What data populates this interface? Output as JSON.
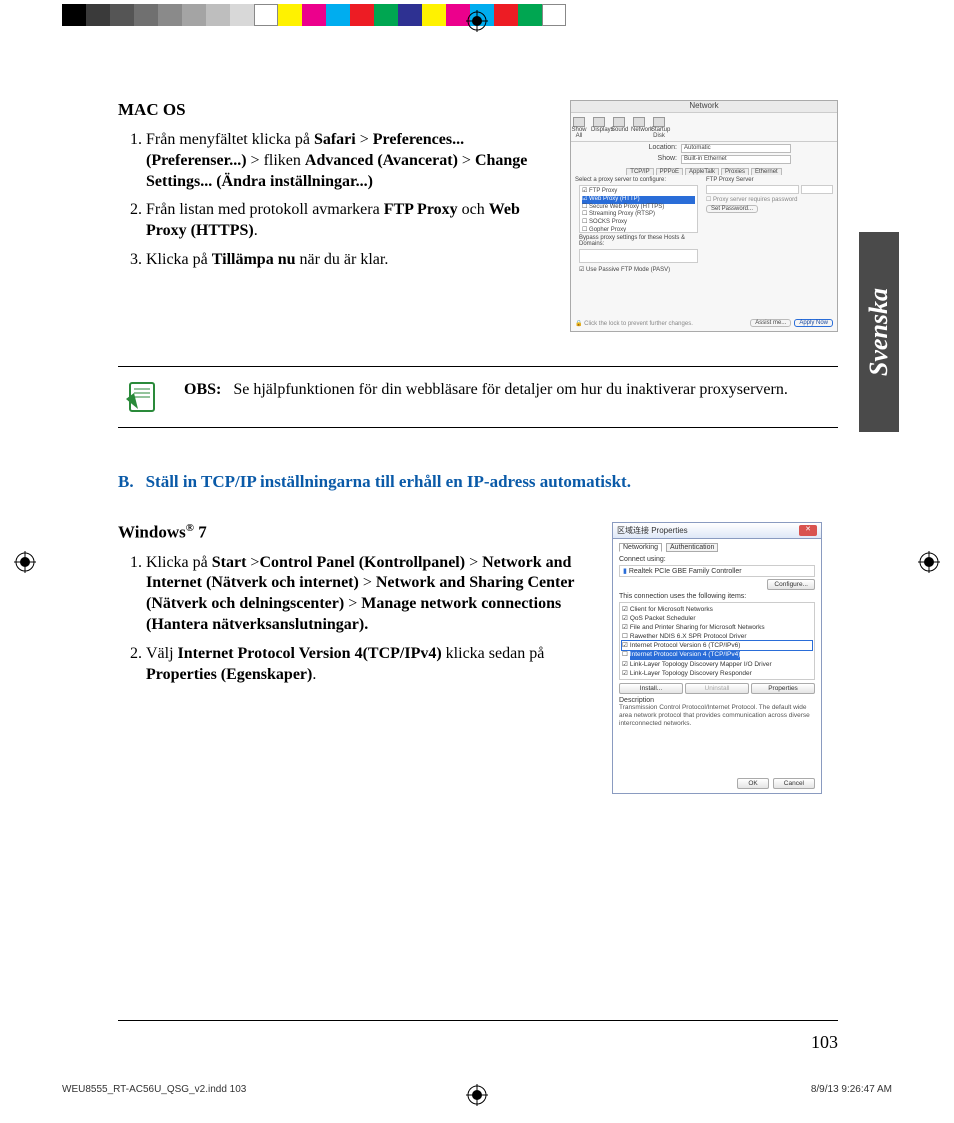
{
  "print_bar_colors": [
    "#000000",
    "#3a3a3a",
    "#555555",
    "#707070",
    "#8a8a8a",
    "#a4a4a4",
    "#bebebe",
    "#d8d8d8",
    "#ffffff",
    "#fff200",
    "#ec008c",
    "#00adef",
    "#ed1c24",
    "#00a651",
    "#2e3192",
    "#fff200",
    "#ec008c",
    "#00adef",
    "#ed1c24",
    "#00a651",
    "#ffffff"
  ],
  "lang_tab": "Svenska",
  "mac_os": {
    "title": "MAC OS",
    "step1_parts": [
      "Från menyfältet klicka på ",
      "Safari",
      " > ",
      "Preferenc­es... (Preferenser...)",
      " > fliken ",
      "Advanced (Av­ancerat)",
      " > ",
      "Change  Settings... (Ändra inställ­ningar...)"
    ],
    "step2_parts": [
      "Från listan med protokoll avmarkera ",
      "FTP Proxy",
      " och ",
      "Web Proxy (HTTPS)",
      "."
    ],
    "step3_parts": [
      "Klicka på ",
      "Tillämpa nu",
      " när du är klar."
    ]
  },
  "mac_fig": {
    "win_title": "Network",
    "toolbar": [
      "Show All",
      "Displays",
      "Sound",
      "Network",
      "Startup Disk"
    ],
    "location_label": "Location:",
    "location_val": "Automatic",
    "show_label": "Show:",
    "show_val": "Built-in Ethernet",
    "tabs": [
      "TCP/IP",
      "PPPoE",
      "AppleTalk",
      "Proxies",
      "Ethernet"
    ],
    "left_header": "Select a proxy server to configure:",
    "right_header": "FTP Proxy Server",
    "proxies": [
      "FTP Proxy",
      "Web Proxy (HTTP)",
      "Secure Web Proxy (HTTPS)",
      "Streaming Proxy (RTSP)",
      "SOCKS Proxy",
      "Gopher Proxy"
    ],
    "bypass": "Bypass proxy settings for these Hosts & Domains:",
    "pasv": "Use Passive FTP Mode (PASV)",
    "pwd_note": "Proxy server requires password",
    "set_pwd": "Set Password...",
    "lock": "Click the lock to prevent further changes.",
    "assist": "Assist me...",
    "apply": "Apply Now"
  },
  "note": {
    "label": "OBS:",
    "text": "Se hjälpfunktionen för din webbläsare för detaljer om hur du inaktiverar proxyservern."
  },
  "section_b": {
    "letter": "B.",
    "text": "Ställ in TCP/IP inställningarna till erhåll en IP-adress automatiskt."
  },
  "win7": {
    "title": "Windows® 7",
    "step1_parts": [
      "Klicka på ",
      "Start",
      " >",
      "Control Panel (Kontrollpanel)",
      " > ",
      "Network and Internet (Nätverk och internet)",
      " > ",
      "Network and Sharing Center (Nätverk och del­ningscenter)",
      " > ",
      "Manage network connections (Hantera nätverksanslutningar)."
    ],
    "step2_parts": [
      "Välj ",
      "Internet Protocol Version 4(TCP/IPv4)",
      " klicka sedan på ",
      "Properties (Egenskaper)",
      "."
    ]
  },
  "win_fig": {
    "title": "区域连接 Properties",
    "tabs": [
      "Networking",
      "Authentication"
    ],
    "connect_label": "Connect using:",
    "adapter": "Realtek PCIe GBE Family Controller",
    "configure": "Configure...",
    "uses": "This connection uses the following items:",
    "items": [
      "Client for Microsoft Networks",
      "QoS Packet Scheduler",
      "File and Printer Sharing for Microsoft Networks",
      "Rawether NDIS 6.X SPR Protocol Driver",
      "Internet Protocol Version 6 (TCP/IPv6)",
      "Internet Protocol Version 4 (TCP/IPv4)",
      "Link-Layer Topology Discovery Mapper I/O Driver",
      "Link-Layer Topology Discovery Responder"
    ],
    "install": "Install...",
    "uninstall": "Uninstall",
    "properties": "Properties",
    "desc_label": "Description",
    "desc_text": "Transmission Control Protocol/Internet Protocol. The default wide area network protocol that provides communication across diverse interconnected networks.",
    "ok": "OK",
    "cancel": "Cancel"
  },
  "page_num": "103",
  "slug_left": "WEU8555_RT-AC56U_QSG_v2.indd   103",
  "slug_right": "8/9/13   9:26:47 AM"
}
